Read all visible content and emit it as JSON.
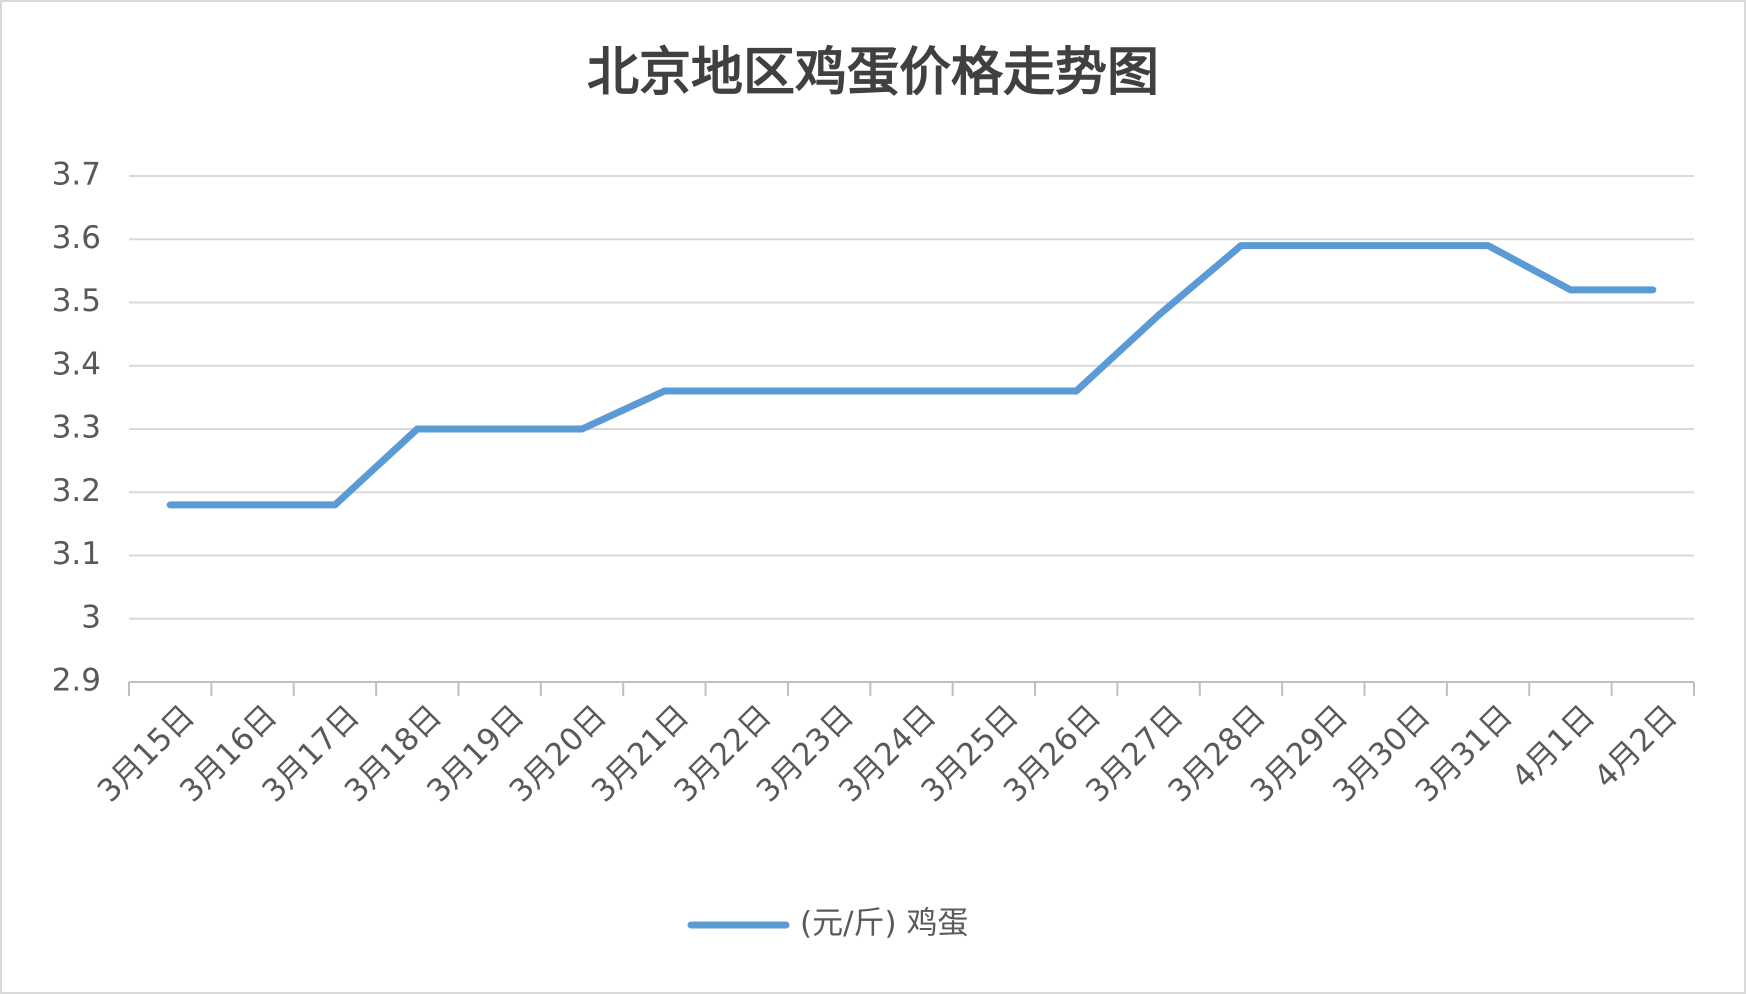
{
  "chart_data": {
    "type": "line",
    "title": "北京地区鸡蛋价格走势图",
    "categories": [
      "3月15日",
      "3月16日",
      "3月17日",
      "3月18日",
      "3月19日",
      "3月20日",
      "3月21日",
      "3月22日",
      "3月23日",
      "3月24日",
      "3月25日",
      "3月26日",
      "3月27日",
      "3月28日",
      "3月29日",
      "3月30日",
      "3月31日",
      "4月1日",
      "4月2日"
    ],
    "series": [
      {
        "name": "(元/斤) 鸡蛋",
        "color": "#5b9bd5",
        "values": [
          3.18,
          3.18,
          3.18,
          3.3,
          3.3,
          3.3,
          3.36,
          3.36,
          3.36,
          3.36,
          3.36,
          3.36,
          3.48,
          3.59,
          3.59,
          3.59,
          3.59,
          3.52,
          3.52
        ]
      }
    ],
    "ylim": [
      2.9,
      3.7
    ],
    "yticks": [
      2.9,
      3,
      3.1,
      3.2,
      3.3,
      3.4,
      3.5,
      3.6,
      3.7
    ],
    "grid": true,
    "legend": "bottom"
  }
}
